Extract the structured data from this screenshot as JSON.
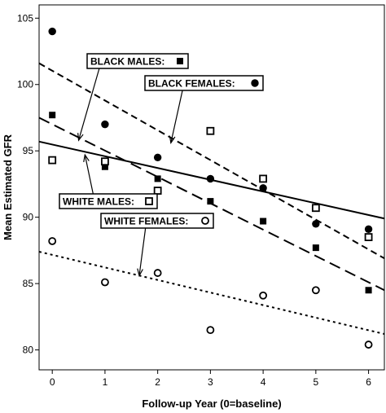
{
  "chart_data": {
    "type": "scatter",
    "title": "",
    "xlabel": "Follow-up Year (0=baseline)",
    "ylabel": "Mean Estimated GFR",
    "xlim": [
      -0.25,
      6.3
    ],
    "ylim": [
      78.5,
      106
    ],
    "x_ticks": [
      0,
      1,
      2,
      3,
      4,
      5,
      6
    ],
    "y_ticks": [
      80,
      85,
      90,
      95,
      100,
      105
    ],
    "grid": false,
    "legend": "callout labels inside the plot",
    "series": [
      {
        "name": "BLACK MALES",
        "marker": "filled-square",
        "line_style": "long-dash",
        "x": [
          0,
          1,
          2,
          3,
          4,
          5,
          6
        ],
        "y": [
          97.7,
          93.8,
          92.9,
          91.2,
          89.7,
          87.7,
          84.5
        ],
        "trend": {
          "y_at_xmin": 97.5,
          "y_at_xmax": 84.5
        }
      },
      {
        "name": "BLACK FEMALES",
        "marker": "filled-circle",
        "line_style": "dash",
        "x": [
          0,
          1,
          2,
          3,
          4,
          5,
          6
        ],
        "y": [
          104.0,
          97.0,
          94.5,
          92.9,
          92.2,
          89.5,
          89.1
        ],
        "trend": {
          "y_at_xmin": 101.6,
          "y_at_xmax": 86.9
        }
      },
      {
        "name": "WHITE MALES",
        "marker": "open-square",
        "line_style": "solid",
        "x": [
          0,
          1,
          2,
          3,
          4,
          5,
          6
        ],
        "y": [
          94.3,
          94.2,
          92.0,
          96.5,
          92.9,
          90.7,
          88.5
        ],
        "trend": {
          "y_at_xmin": 95.7,
          "y_at_xmax": 89.9
        }
      },
      {
        "name": "WHITE FEMALES",
        "marker": "open-circle",
        "line_style": "dot",
        "x": [
          0,
          1,
          2,
          3,
          4,
          5,
          6
        ],
        "y": [
          88.2,
          85.1,
          85.8,
          81.5,
          84.1,
          84.5,
          80.4
        ],
        "trend": {
          "y_at_xmin": 87.4,
          "y_at_xmax": 81.2
        }
      }
    ],
    "callouts": [
      {
        "text": "BLACK MALES:",
        "series": "BLACK MALES",
        "arrow_to": [
          0.5,
          95.8
        ]
      },
      {
        "text": "BLACK FEMALES:",
        "series": "BLACK FEMALES",
        "arrow_to": [
          2.25,
          95.6
        ]
      },
      {
        "text": "WHITE MALES:",
        "series": "WHITE MALES",
        "arrow_to": [
          0.62,
          94.7
        ]
      },
      {
        "text": "WHITE FEMALES:",
        "series": "WHITE FEMALES",
        "arrow_to": [
          1.65,
          85.6
        ]
      }
    ]
  }
}
